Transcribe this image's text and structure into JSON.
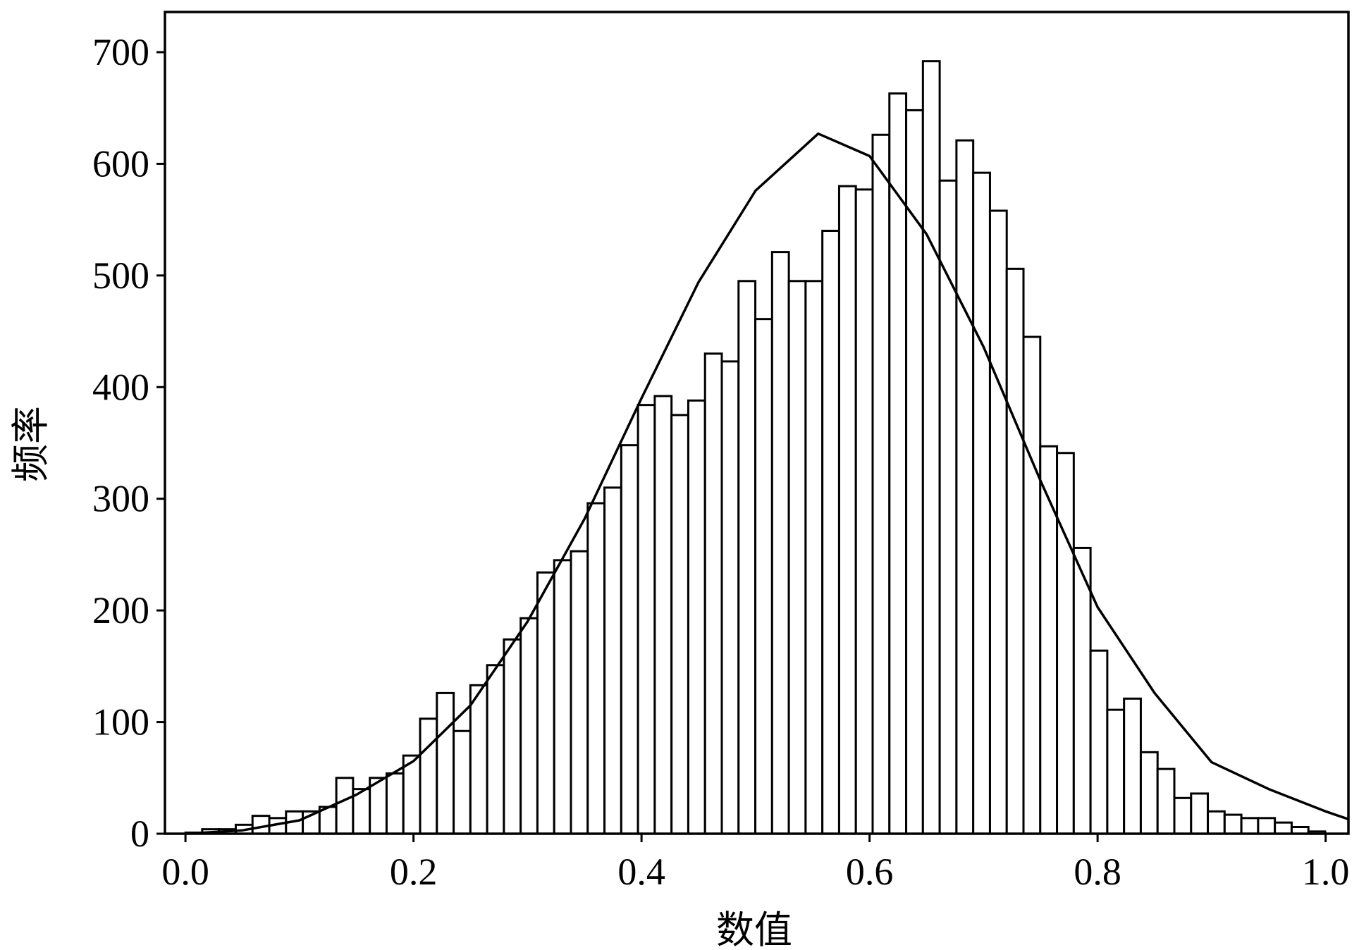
{
  "chart_data": {
    "type": "histogram",
    "xlabel": "数值",
    "ylabel": "频率",
    "bins": [
      0,
      0.0147,
      0.0294,
      0.0441,
      0.0588,
      0.0735,
      0.0882,
      0.1029,
      0.1176,
      0.1323,
      0.147,
      0.1617,
      0.1764,
      0.1911,
      0.2058,
      0.2205,
      0.2352,
      0.2499,
      0.2646,
      0.2793,
      0.294,
      0.3087,
      0.3234,
      0.3381,
      0.3528,
      0.3675,
      0.3822,
      0.3969,
      0.4116,
      0.4263,
      0.441,
      0.4557,
      0.4704,
      0.4851,
      0.4998,
      0.5145,
      0.5292,
      0.5439,
      0.5586,
      0.5733,
      0.588,
      0.6027,
      0.6174,
      0.6321,
      0.6468,
      0.6615,
      0.6762,
      0.6909,
      0.7056,
      0.7203,
      0.735,
      0.7497,
      0.7644,
      0.7791,
      0.7938,
      0.8085,
      0.8232,
      0.8379,
      0.8526,
      0.8673,
      0.882,
      0.8967,
      0.9114,
      0.9261,
      0.9408,
      0.9555,
      0.9702,
      0.9849,
      0.9996
    ],
    "counts": [
      1,
      4,
      4,
      8,
      16,
      14,
      20,
      20,
      24,
      50,
      40,
      50,
      54,
      70,
      103,
      126,
      92,
      133,
      151,
      174,
      193,
      234,
      245,
      253,
      296,
      310,
      348,
      384,
      392,
      375,
      388,
      430,
      423,
      495,
      461,
      521,
      495,
      495,
      540,
      580,
      577,
      626,
      663,
      648,
      692,
      585,
      621,
      592,
      558,
      506,
      445,
      347,
      341,
      256,
      164,
      111,
      121,
      73,
      58,
      32,
      36,
      20,
      17,
      14,
      14,
      10,
      6,
      2
    ],
    "bar_color": "#ffffff",
    "edge_color": "#000000",
    "curve": {
      "x": [
        0,
        0.05,
        0.1,
        0.15,
        0.2,
        0.25,
        0.3,
        0.35,
        0.4,
        0.45,
        0.5,
        0.555,
        0.6,
        0.65,
        0.7,
        0.75,
        0.8,
        0.85,
        0.9,
        0.95,
        1.0,
        1.02
      ],
      "values": [
        0,
        3,
        12,
        35,
        65,
        115,
        190,
        282,
        390,
        494,
        576,
        627,
        607,
        537,
        436,
        316,
        203,
        126,
        64,
        40,
        20,
        13
      ],
      "color": "#000000"
    },
    "xlim": [
      -0.018,
      1.02
    ],
    "ylim": [
      0,
      736
    ],
    "xticks": [
      {
        "value": 0,
        "label": "0.0"
      },
      {
        "value": 0.2,
        "label": "0.2"
      },
      {
        "value": 0.4,
        "label": "0.4"
      },
      {
        "value": 0.6,
        "label": "0.6"
      },
      {
        "value": 0.8,
        "label": "0.8"
      },
      {
        "value": 1,
        "label": "1.0"
      }
    ],
    "yticks": [
      0,
      100,
      200,
      300,
      400,
      500,
      600,
      700
    ]
  }
}
